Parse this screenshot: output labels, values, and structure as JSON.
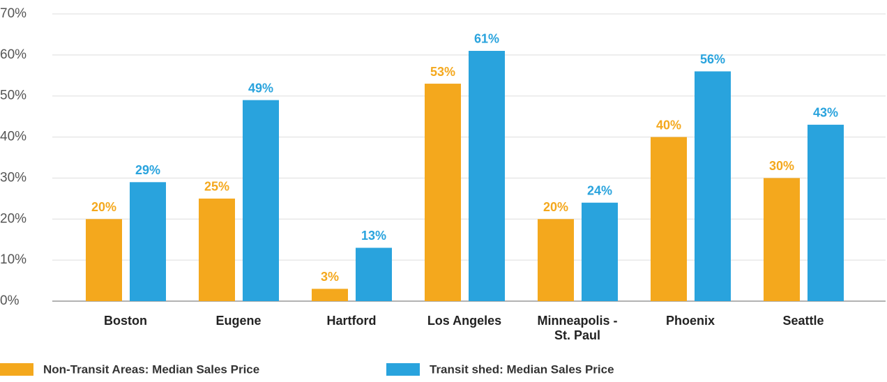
{
  "chart_data": {
    "type": "bar",
    "categories": [
      "Boston",
      "Eugene",
      "Hartford",
      "Los Angeles",
      "Minneapolis - St. Paul",
      "Phoenix",
      "Seattle"
    ],
    "series": [
      {
        "name": "Non-Transit Areas: Median Sales Price",
        "color": "#f4a81d",
        "values": [
          20,
          25,
          3,
          53,
          20,
          40,
          30
        ],
        "value_labels": [
          "20%",
          "25%",
          "3%",
          "53%",
          "20%",
          "40%",
          "30%"
        ]
      },
      {
        "name": "Transit shed: Median Sales Price",
        "color": "#29a3dd",
        "values": [
          29,
          49,
          13,
          61,
          24,
          56,
          43
        ],
        "value_labels": [
          "29%",
          "49%",
          "13%",
          "61%",
          "24%",
          "56%",
          "43%"
        ]
      }
    ],
    "ylim": [
      0,
      70
    ],
    "yticks": [
      {
        "value": 0,
        "label": "0%"
      },
      {
        "value": 10,
        "label": "10%"
      },
      {
        "value": 20,
        "label": "20%"
      },
      {
        "value": 30,
        "label": "30%"
      },
      {
        "value": 40,
        "label": "40%"
      },
      {
        "value": 50,
        "label": "50%"
      },
      {
        "value": 60,
        "label": "60%"
      },
      {
        "value": 70,
        "label": "70%"
      }
    ],
    "grid": true,
    "legend": "bottom"
  }
}
